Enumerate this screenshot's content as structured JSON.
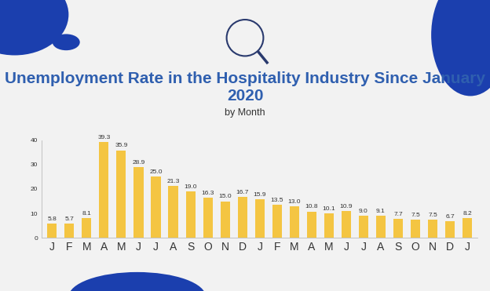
{
  "chart_data": {
    "type": "bar",
    "title": "Unemployment Rate in the Hospitality Industry Since January 2020",
    "subtitle": "by Month",
    "categories": [
      "J",
      "F",
      "M",
      "A",
      "M",
      "J",
      "J",
      "A",
      "S",
      "O",
      "N",
      "D",
      "J",
      "F",
      "M",
      "A",
      "M",
      "J",
      "J",
      "A",
      "S",
      "O",
      "N",
      "D",
      "J"
    ],
    "values": [
      5.8,
      5.7,
      8.1,
      39.3,
      35.9,
      28.9,
      25.0,
      21.3,
      19.0,
      16.3,
      15.0,
      16.7,
      15.9,
      13.5,
      13.0,
      10.8,
      10.1,
      10.9,
      9.0,
      9.1,
      7.7,
      7.5,
      7.5,
      6.7,
      8.2
    ],
    "color": "#F4C542",
    "ylim": [
      0,
      40
    ],
    "yticks": [
      0,
      10,
      20,
      30,
      40
    ],
    "grid": false,
    "data_labels": true
  }
}
